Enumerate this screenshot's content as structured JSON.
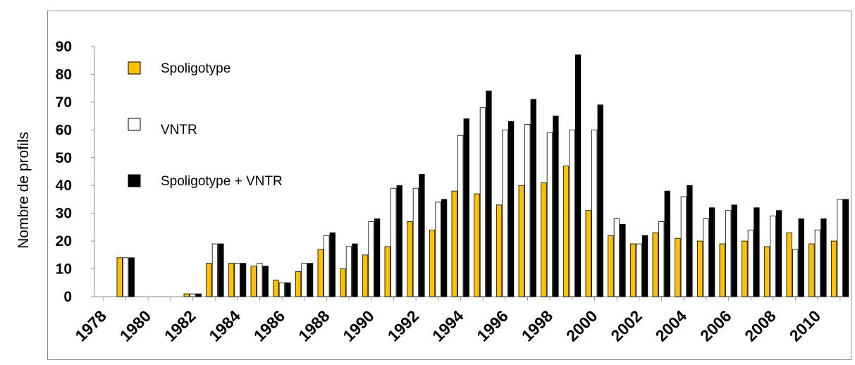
{
  "chart_data": {
    "type": "bar",
    "title": "",
    "xlabel": "",
    "ylabel": "Nombre de  profils",
    "ylim": [
      0,
      90
    ],
    "yticks": [
      0,
      10,
      20,
      30,
      40,
      50,
      60,
      70,
      80,
      90
    ],
    "xtick_labels": [
      "1978",
      "1980",
      "1982",
      "1984",
      "1986",
      "1988",
      "1990",
      "1992",
      "1994",
      "1996",
      "1998",
      "2000",
      "2002",
      "2004",
      "2006",
      "2008",
      "2010"
    ],
    "categories": [
      "1979",
      "1980",
      "1981",
      "1982",
      "1983",
      "1984",
      "1985",
      "1986",
      "1987",
      "1988",
      "1989",
      "1990",
      "1991",
      "1992",
      "1993",
      "1994",
      "1995",
      "1996",
      "1997",
      "1998",
      "1999",
      "2000",
      "2001",
      "2002",
      "2003",
      "2004",
      "2005",
      "2006",
      "2007",
      "2008",
      "2009",
      "2010",
      "2011"
    ],
    "series": [
      {
        "name": "Spoligotype",
        "color": "#FFC000",
        "values": [
          14,
          0,
          0,
          1,
          12,
          12,
          11,
          6,
          9,
          17,
          10,
          15,
          18,
          27,
          24,
          38,
          37,
          33,
          40,
          41,
          47,
          31,
          22,
          19,
          23,
          21,
          20,
          19,
          20,
          18,
          23,
          19,
          20
        ]
      },
      {
        "name": "VNTR",
        "color": "#FFFFFF",
        "values": [
          14,
          0,
          0,
          1,
          19,
          12,
          12,
          5,
          12,
          22,
          18,
          27,
          39,
          39,
          34,
          58,
          68,
          60,
          62,
          59,
          60,
          60,
          28,
          19,
          27,
          36,
          28,
          31,
          24,
          29,
          17,
          24,
          35
        ]
      },
      {
        "name": "Spoligotype + VNTR",
        "color": "#000000",
        "values": [
          14,
          0,
          0,
          1,
          19,
          12,
          11,
          5,
          12,
          23,
          19,
          28,
          40,
          44,
          35,
          64,
          74,
          63,
          71,
          65,
          87,
          69,
          26,
          22,
          38,
          40,
          32,
          33,
          32,
          31,
          28,
          28,
          35
        ]
      }
    ],
    "legend_position": "top-left",
    "grid": false
  }
}
